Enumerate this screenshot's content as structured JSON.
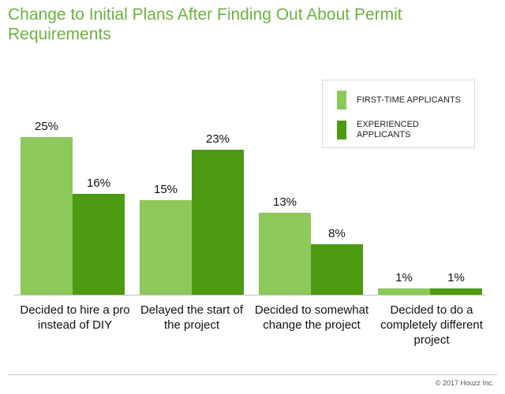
{
  "title": "Change to Initial Plans After Finding Out About Permit Requirements",
  "copyright": "© 2017 Houzz Inc.",
  "colors": {
    "title": "#6cb33f",
    "first_time": "#8cc85a",
    "experienced": "#4c9a12",
    "axis": "#bfbfbf"
  },
  "chart_data": {
    "type": "bar",
    "title": "Change to Initial Plans After Finding Out About Permit Requirements",
    "xlabel": "",
    "ylabel": "",
    "ylim": [
      0,
      25
    ],
    "grid": false,
    "legend": "top-right",
    "categories": [
      "Decided to hire a pro instead of DIY",
      "Delayed the start of the project",
      "Decided to somewhat change the project",
      "Decided to do a completely different project"
    ],
    "series": [
      {
        "name": "FIRST-TIME APPLICANTS",
        "values": [
          25,
          15,
          13,
          1
        ],
        "labels": [
          "25%",
          "15%",
          "13%",
          "1%"
        ]
      },
      {
        "name": "EXPERIENCED APPLICANTS",
        "values": [
          16,
          23,
          8,
          1
        ],
        "labels": [
          "16%",
          "23%",
          "8%",
          "1%"
        ]
      }
    ]
  }
}
